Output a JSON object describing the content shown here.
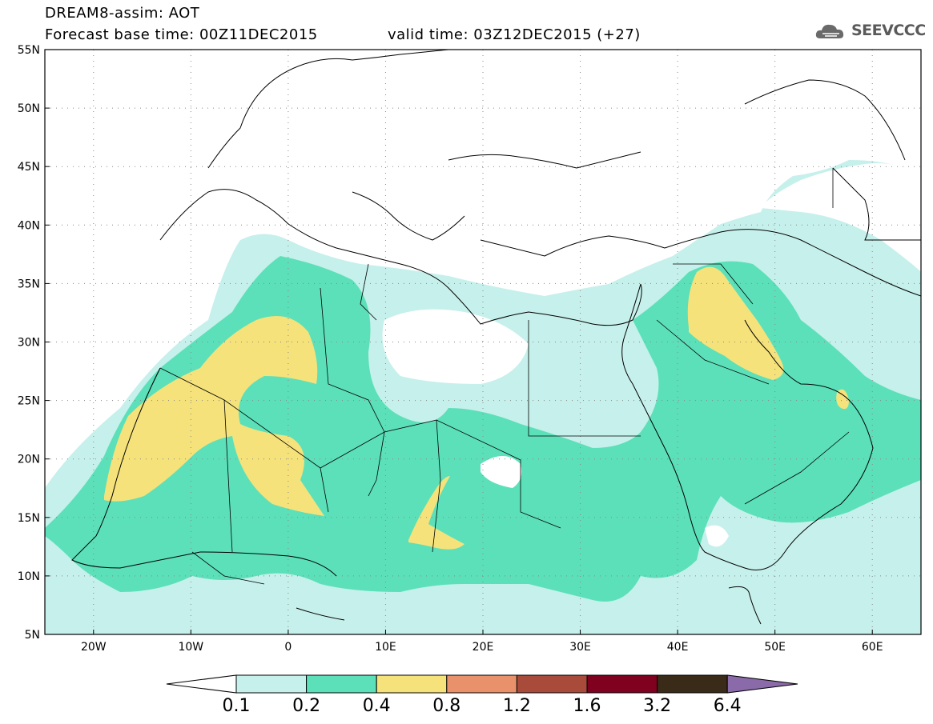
{
  "header": {
    "title": "DREAM8-assim: AOT",
    "base_time": "Forecast base time: 00Z11DEC2015",
    "valid_time": "valid time: 03Z12DEC2015 (+27)",
    "logo_text": "SEEVCCC",
    "logo_icon": "cloud-logo-icon"
  },
  "map": {
    "lon_range": [
      -25,
      65
    ],
    "lat_range": [
      5,
      55
    ],
    "lon_ticks": [
      "20W",
      "10W",
      "0",
      "10E",
      "20E",
      "30E",
      "40E",
      "50E",
      "60E"
    ],
    "lat_ticks": [
      "55N",
      "50N",
      "45N",
      "40N",
      "35N",
      "30N",
      "25N",
      "20N",
      "15N",
      "10N",
      "5N"
    ],
    "grid": "dotted",
    "variable": "AOT"
  },
  "colorbar": {
    "labels": [
      "0.1",
      "0.2",
      "0.4",
      "0.8",
      "1.2",
      "1.6",
      "3.2",
      "6.4"
    ],
    "colors": [
      "#ffffff",
      "#c6f0eb",
      "#5ce0b9",
      "#f5e27b",
      "#e8916a",
      "#a94b3b",
      "#800020",
      "#3a2a18",
      "#8a6aa8"
    ]
  }
}
